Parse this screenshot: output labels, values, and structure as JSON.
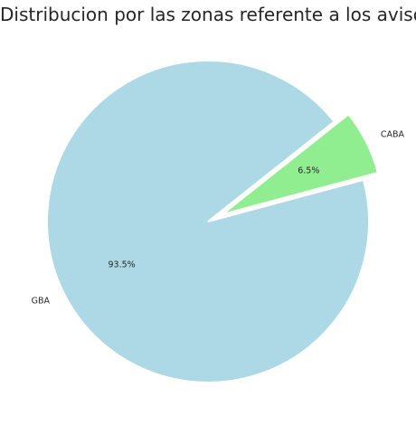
{
  "chart_data": {
    "type": "pie",
    "title": "Distribucion por las zonas referente a los avisos",
    "categories": [
      "CABA",
      "GBA"
    ],
    "values": [
      6.5,
      93.5
    ],
    "percent_labels": [
      "6.5%",
      "93.5%"
    ],
    "colors": [
      "#90ee90",
      "#add8e6"
    ],
    "explode": [
      0.1,
      0
    ],
    "start_angle_deg": 15,
    "direction": "counterclockwise",
    "legend": "none",
    "edge_color": "#ffffff"
  }
}
